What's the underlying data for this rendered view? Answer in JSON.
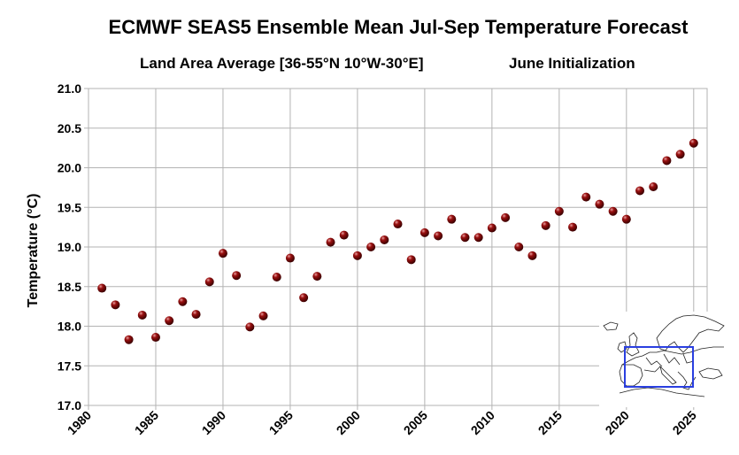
{
  "chart_data": {
    "type": "scatter",
    "title": "ECMWF SEAS5 Ensemble Mean Jul-Sep Temperature Forecast",
    "subtitle": "Land Area Average [36-55°N 10°W-30°E]",
    "initialization": "June Initialization",
    "xlabel": "",
    "ylabel": "Temperature (°C)",
    "xlim": [
      1980,
      2026
    ],
    "ylim": [
      17.0,
      21.0
    ],
    "xticks": [
      1980,
      1985,
      1990,
      1995,
      2000,
      2005,
      2010,
      2015,
      2020,
      2025
    ],
    "yticks": [
      "17.0",
      "17.5",
      "18.0",
      "18.5",
      "19.0",
      "19.5",
      "20.0",
      "20.5",
      "21.0"
    ],
    "grid": true,
    "marker_color": "#7a0a0a",
    "x": [
      1981,
      1982,
      1983,
      1984,
      1985,
      1986,
      1987,
      1988,
      1989,
      1990,
      1991,
      1992,
      1993,
      1994,
      1995,
      1996,
      1997,
      1998,
      1999,
      2000,
      2001,
      2002,
      2003,
      2004,
      2005,
      2006,
      2007,
      2008,
      2009,
      2010,
      2011,
      2012,
      2013,
      2014,
      2015,
      2016,
      2017,
      2018,
      2019,
      2020,
      2021,
      2022,
      2023,
      2024,
      2025
    ],
    "y": [
      18.48,
      18.27,
      17.83,
      18.14,
      17.86,
      18.07,
      18.31,
      18.15,
      18.56,
      18.92,
      18.64,
      17.99,
      18.13,
      18.62,
      18.86,
      18.36,
      18.63,
      19.06,
      19.15,
      18.89,
      19.0,
      19.09,
      19.29,
      18.84,
      19.18,
      19.14,
      19.35,
      19.12,
      19.12,
      19.24,
      19.37,
      19.0,
      18.89,
      19.27,
      19.45,
      19.25,
      19.63,
      19.54,
      19.45,
      19.35,
      19.71,
      19.76,
      20.09,
      20.17,
      20.31
    ]
  },
  "inset_map": {
    "label": "Europe region map",
    "box_color": "#2a3fe0"
  }
}
